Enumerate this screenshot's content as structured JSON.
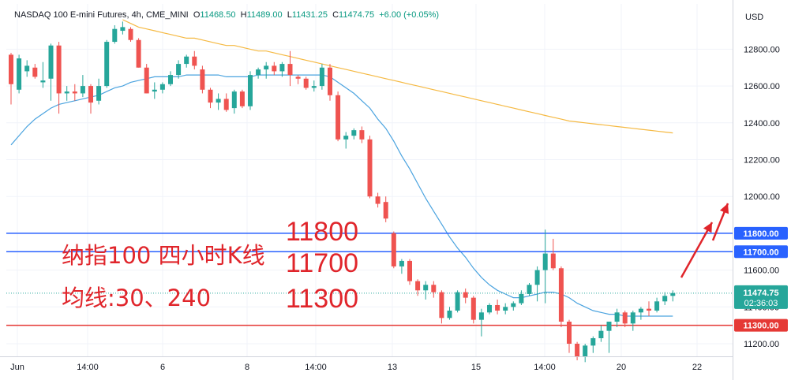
{
  "header": {
    "symbol": "NASDAQ 100 E-mini Futures",
    "interval": "4h",
    "exchange": "CME_MINI",
    "open_label": "O",
    "open": "11468.50",
    "high_label": "H",
    "high": "11489.00",
    "low_label": "L",
    "low": "11431.25",
    "close_label": "C",
    "close": "11474.75",
    "change": "+6.00 (+0.05%)"
  },
  "price_axis": {
    "currency": "USD",
    "ticks": [
      "12800.00",
      "12600.00",
      "12400.00",
      "12200.00",
      "12000.00",
      "11600.00",
      "11400.00",
      "11200.00"
    ]
  },
  "time_axis": {
    "labels": [
      "Jun",
      "14:00",
      "6",
      "8",
      "14:00",
      "13",
      "15",
      "14:00",
      "20",
      "22"
    ]
  },
  "last_price": {
    "value": "11474.75",
    "countdown": "02:36:03"
  },
  "annotations": {
    "title": "纳指100 四小时K线",
    "moving_averages": "均线:30、240",
    "level_1": "11800",
    "level_2": "11700",
    "level_3": "11300"
  },
  "colors": {
    "up": "#26a69a",
    "down": "#ef5350",
    "ma30": "#4aa3df",
    "ma240": "#f5b942",
    "level_line": "#2962ff",
    "support_line": "#e53935",
    "last_price": "#26a69a",
    "annotation": "#e0252b"
  },
  "chart_data": {
    "type": "candlestick",
    "y_unit": "USD",
    "ylim": [
      11100,
      12920
    ],
    "horizontal_levels": [
      {
        "label": "11800.00",
        "value": 11800
      },
      {
        "label": "11700.00",
        "value": 11700
      },
      {
        "label": "11300.00",
        "value": 11300
      }
    ],
    "candles": [
      [
        12770,
        12780,
        12500,
        12610
      ],
      [
        12580,
        12770,
        12560,
        12750
      ],
      [
        12680,
        12740,
        12650,
        12710
      ],
      [
        12700,
        12720,
        12640,
        12650
      ],
      [
        12620,
        12730,
        12590,
        12630
      ],
      [
        12640,
        12830,
        12520,
        12820
      ],
      [
        12820,
        12840,
        12450,
        12560
      ],
      [
        12560,
        12600,
        12520,
        12570
      ],
      [
        12570,
        12610,
        12520,
        12560
      ],
      [
        12560,
        12660,
        12540,
        12600
      ],
      [
        12600,
        12610,
        12450,
        12510
      ],
      [
        12520,
        12640,
        12500,
        12600
      ],
      [
        12600,
        12850,
        12590,
        12840
      ],
      [
        12840,
        12930,
        12830,
        12910
      ],
      [
        12900,
        12950,
        12880,
        12920
      ],
      [
        12910,
        12920,
        12840,
        12850
      ],
      [
        12850,
        12860,
        12700,
        12700
      ],
      [
        12700,
        12720,
        12560,
        12560
      ],
      [
        12570,
        12620,
        12530,
        12580
      ],
      [
        12580,
        12620,
        12560,
        12610
      ],
      [
        12610,
        12680,
        12600,
        12660
      ],
      [
        12660,
        12740,
        12640,
        12720
      ],
      [
        12720,
        12770,
        12700,
        12760
      ],
      [
        12760,
        12790,
        12690,
        12710
      ],
      [
        12690,
        12710,
        12560,
        12580
      ],
      [
        12580,
        12590,
        12480,
        12510
      ],
      [
        12510,
        12560,
        12470,
        12530
      ],
      [
        12530,
        12560,
        12460,
        12470
      ],
      [
        12480,
        12580,
        12450,
        12570
      ],
      [
        12570,
        12580,
        12480,
        12490
      ],
      [
        12490,
        12680,
        12470,
        12660
      ],
      [
        12660,
        12700,
        12640,
        12690
      ],
      [
        12690,
        12730,
        12640,
        12710
      ],
      [
        12710,
        12730,
        12660,
        12680
      ],
      [
        12680,
        12730,
        12650,
        12720
      ],
      [
        12720,
        12790,
        12600,
        12660
      ],
      [
        12650,
        12660,
        12610,
        12640
      ],
      [
        12640,
        12650,
        12580,
        12590
      ],
      [
        12590,
        12630,
        12570,
        12600
      ],
      [
        12600,
        12720,
        12580,
        12700
      ],
      [
        12700,
        12720,
        12520,
        12550
      ],
      [
        12550,
        12570,
        12300,
        12310
      ],
      [
        12310,
        12350,
        12260,
        12330
      ],
      [
        12330,
        12370,
        12310,
        12360
      ],
      [
        12360,
        12380,
        12290,
        12310
      ],
      [
        12310,
        12330,
        11990,
        12000
      ],
      [
        12000,
        12020,
        11940,
        11960
      ],
      [
        11970,
        12000,
        11860,
        11880
      ],
      [
        11800,
        11810,
        11610,
        11620
      ],
      [
        11620,
        11660,
        11580,
        11650
      ],
      [
        11650,
        11660,
        11520,
        11540
      ],
      [
        11540,
        11550,
        11460,
        11490
      ],
      [
        11490,
        11540,
        11440,
        11520
      ],
      [
        11520,
        11540,
        11450,
        11480
      ],
      [
        11480,
        11490,
        11310,
        11340
      ],
      [
        11340,
        11400,
        11330,
        11380
      ],
      [
        11380,
        11490,
        11370,
        11480
      ],
      [
        11480,
        11500,
        11420,
        11450
      ],
      [
        11450,
        11460,
        11310,
        11330
      ],
      [
        11330,
        11390,
        11240,
        11370
      ],
      [
        11370,
        11420,
        11360,
        11410
      ],
      [
        11410,
        11440,
        11360,
        11380
      ],
      [
        11380,
        11420,
        11360,
        11400
      ],
      [
        11400,
        11430,
        11380,
        11420
      ],
      [
        11420,
        11490,
        11410,
        11470
      ],
      [
        11470,
        11530,
        11460,
        11520
      ],
      [
        11520,
        11620,
        11430,
        11600
      ],
      [
        11600,
        11820,
        11420,
        11690
      ],
      [
        11690,
        11770,
        11600,
        11610
      ],
      [
        11610,
        11620,
        11290,
        11320
      ],
      [
        11320,
        11330,
        11150,
        11200
      ],
      [
        11200,
        11210,
        11110,
        11130
      ],
      [
        11130,
        11200,
        11100,
        11190
      ],
      [
        11190,
        11240,
        11150,
        11230
      ],
      [
        11230,
        11300,
        11210,
        11270
      ],
      [
        11270,
        11320,
        11150,
        11320
      ],
      [
        11320,
        11390,
        11290,
        11370
      ],
      [
        11370,
        11380,
        11290,
        11310
      ],
      [
        11310,
        11380,
        11270,
        11370
      ],
      [
        11370,
        11400,
        11330,
        11390
      ],
      [
        11390,
        11430,
        11350,
        11380
      ],
      [
        11380,
        11450,
        11370,
        11430
      ],
      [
        11430,
        11480,
        11410,
        11460
      ],
      [
        11460,
        11490,
        11430,
        11475
      ]
    ],
    "series": [
      {
        "name": "30",
        "values": [
          12280,
          12330,
          12380,
          12420,
          12450,
          12480,
          12500,
          12510,
          12520,
          12530,
          12540,
          12550,
          12570,
          12590,
          12600,
          12620,
          12630,
          12640,
          12650,
          12650,
          12650,
          12650,
          12660,
          12660,
          12660,
          12660,
          12660,
          12650,
          12650,
          12650,
          12650,
          12660,
          12660,
          12660,
          12660,
          12660,
          12660,
          12660,
          12660,
          12660,
          12650,
          12620,
          12590,
          12560,
          12520,
          12480,
          12420,
          12370,
          12300,
          12220,
          12150,
          12070,
          11990,
          11920,
          11850,
          11780,
          11720,
          11670,
          11610,
          11560,
          11520,
          11490,
          11470,
          11450,
          11450,
          11460,
          11470,
          11480,
          11480,
          11470,
          11450,
          11420,
          11400,
          11380,
          11370,
          11360,
          11360,
          11350,
          11350,
          11350,
          11350,
          11350,
          11350,
          11350
        ]
      },
      {
        "name": "240",
        "values": [
          null,
          null,
          null,
          null,
          null,
          null,
          null,
          null,
          null,
          null,
          null,
          null,
          null,
          null,
          12960,
          12940,
          12920,
          12910,
          12900,
          12890,
          12880,
          12870,
          12860,
          12860,
          12850,
          12840,
          12830,
          12820,
          12820,
          12810,
          12800,
          12790,
          12790,
          12780,
          12770,
          12760,
          12750,
          12740,
          12730,
          12720,
          12710,
          12700,
          12690,
          12680,
          12670,
          12660,
          12650,
          12640,
          12630,
          12620,
          12610,
          12600,
          12590,
          12580,
          12570,
          12560,
          12550,
          12540,
          12530,
          12520,
          12510,
          12500,
          12490,
          12480,
          12470,
          12460,
          12450,
          12440,
          12430,
          12420,
          12410,
          12405,
          12400,
          12395,
          12390,
          12385,
          12380,
          12375,
          12370,
          12365,
          12360,
          12355,
          12350,
          12345
        ]
      }
    ]
  }
}
